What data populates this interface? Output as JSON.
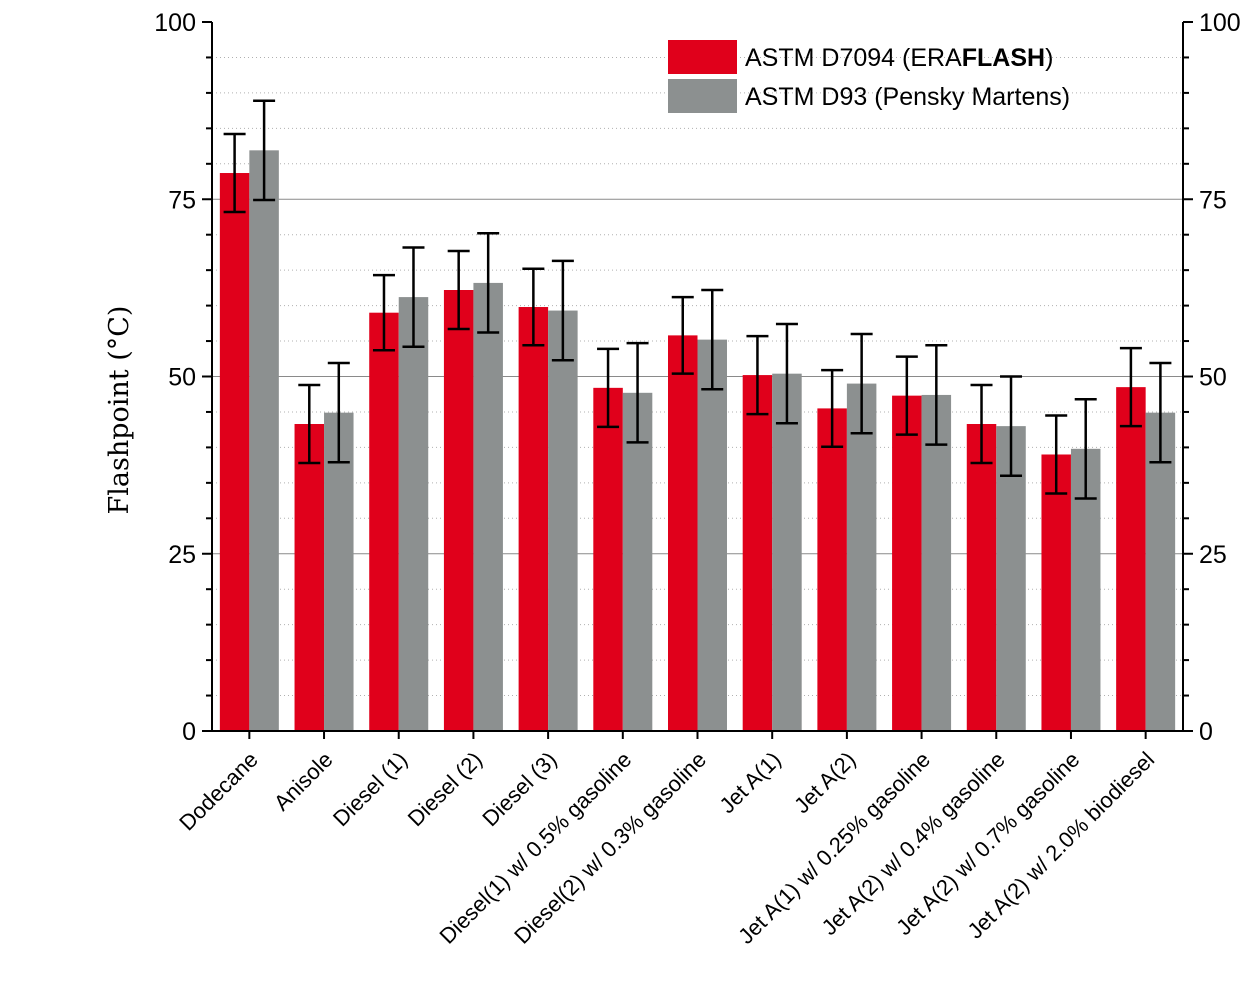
{
  "chart_data": {
    "type": "bar",
    "title": "",
    "xlabel": "",
    "ylabel": "Flashpoint (°C)",
    "ylim": [
      0,
      100
    ],
    "yticks": [
      "0",
      "25",
      "50",
      "75",
      "100"
    ],
    "grid": "horizontal major",
    "legend_position": "top-right",
    "categories": [
      "Dodecane",
      "Anisole",
      "Diesel (1)",
      "Diesel (2)",
      "Diesel (3)",
      "Diesel(1) w/ 0.5% gasoline",
      "Diesel(2) w/ 0.3% gasoline",
      "Jet A(1)",
      "Jet A(2)",
      "Jet A(1) w/ 0.25% gasoline",
      "Jet A(2) w/ 0.4% gasoline",
      "Jet A(2) w/ 0.7% gasoline",
      "Jet A(2) w/ 2.0% biodiesel"
    ],
    "series": [
      {
        "name": "ASTM D7094 (ERAFLASH)",
        "name_plain": "ASTM D7094 (ERA",
        "name_bold": "FLASH",
        "name_end": ")",
        "color": "#e0001b",
        "values": [
          78.7,
          43.3,
          59.0,
          62.2,
          59.8,
          48.4,
          55.8,
          50.2,
          45.5,
          47.3,
          43.3,
          39.0,
          48.5
        ],
        "errors": [
          5.5,
          5.5,
          5.3,
          5.5,
          5.4,
          5.5,
          5.4,
          5.5,
          5.4,
          5.5,
          5.5,
          5.5,
          5.5
        ]
      },
      {
        "name": "ASTM D93 (Pensky Martens)",
        "color": "#8c9090",
        "values": [
          81.9,
          44.9,
          61.2,
          63.2,
          59.3,
          47.7,
          55.2,
          50.4,
          49.0,
          47.4,
          43.0,
          39.8,
          44.9
        ],
        "errors": [
          7.0,
          7.0,
          7.0,
          7.0,
          7.0,
          7.0,
          7.0,
          7.0,
          7.0,
          7.0,
          7.0,
          7.0,
          7.0
        ]
      }
    ]
  }
}
